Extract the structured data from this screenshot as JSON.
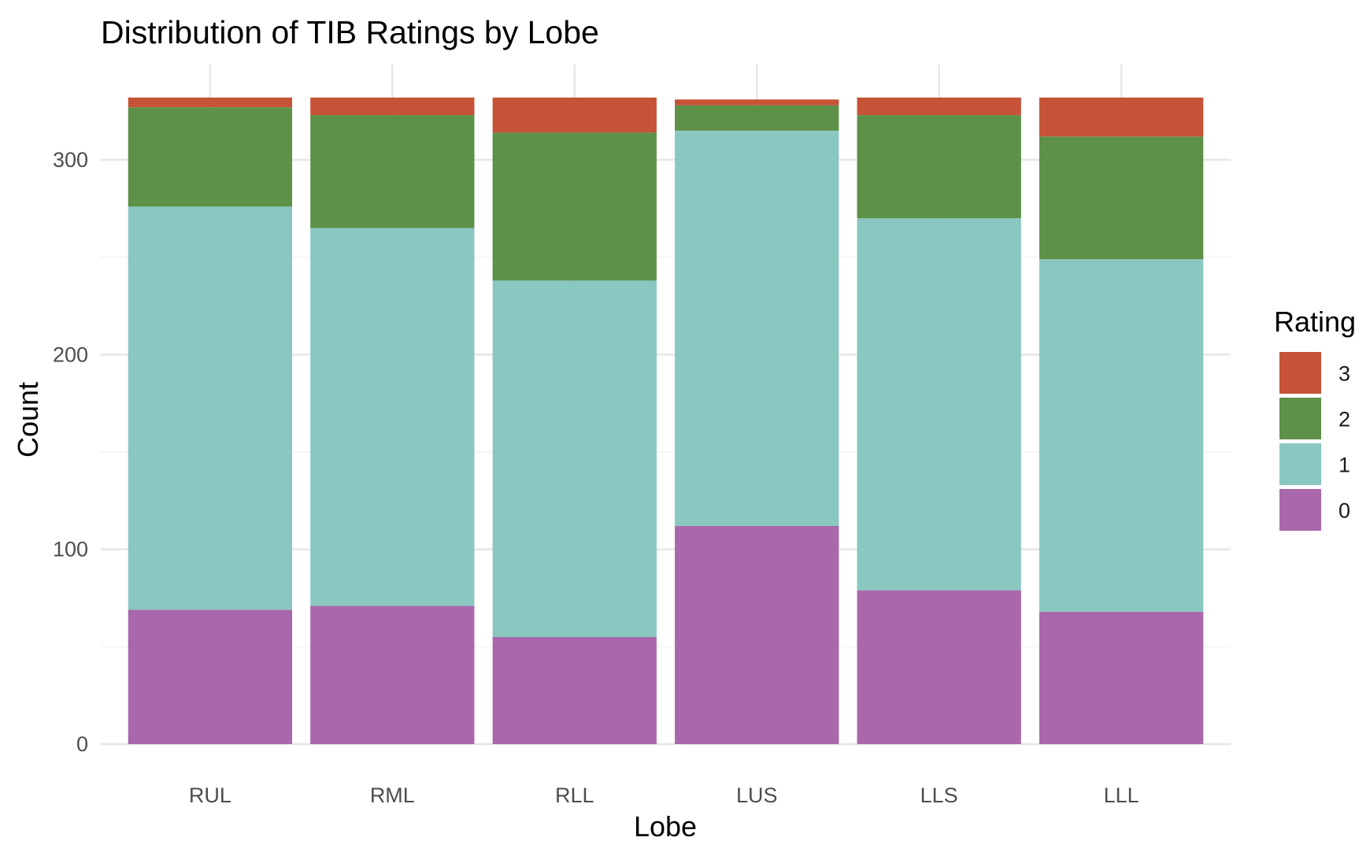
{
  "chart_data": {
    "type": "bar",
    "stacked": true,
    "title": "Distribution of TIB Ratings by Lobe",
    "xlabel": "Lobe",
    "ylabel": "Count",
    "categories": [
      "RUL",
      "RML",
      "RLL",
      "LUS",
      "LLS",
      "LLL"
    ],
    "ylim": [
      0,
      340
    ],
    "yticks": [
      0,
      100,
      200,
      300
    ],
    "grid": true,
    "legend_position": "right",
    "legend_title": "Rating",
    "series": [
      {
        "name": "0",
        "color": "#A968AB",
        "values": [
          69,
          71,
          55,
          112,
          79,
          68
        ]
      },
      {
        "name": "1",
        "color": "#8AC7C1",
        "values": [
          207,
          194,
          183,
          203,
          191,
          181
        ]
      },
      {
        "name": "2",
        "color": "#5D9148",
        "values": [
          51,
          58,
          76,
          13,
          53,
          63
        ]
      },
      {
        "name": "3",
        "color": "#C65337",
        "values": [
          5,
          9,
          18,
          3,
          9,
          20
        ]
      }
    ],
    "legend_order": [
      "3",
      "2",
      "1",
      "0"
    ]
  }
}
